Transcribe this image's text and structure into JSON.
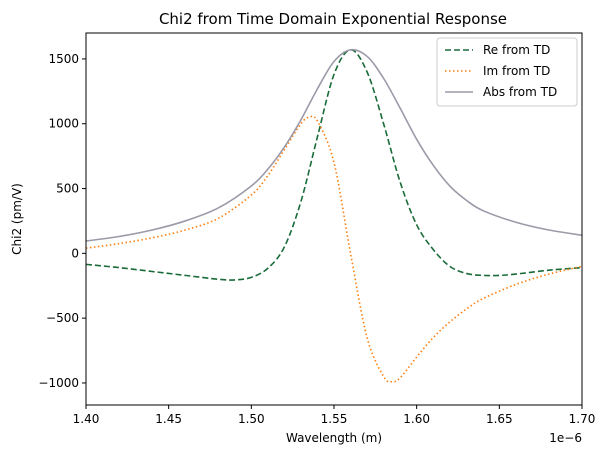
{
  "chart_data": {
    "type": "line",
    "title": "Chi2 from Time Domain Exponential Response",
    "xlabel": "Wavelength (m)",
    "ylabel": "Chi2 (pm/V)",
    "x_offset_label": "1e−6",
    "xlim": [
      1.4,
      1.7
    ],
    "ylim": [
      -1170,
      1700
    ],
    "x_ticks": [
      1.4,
      1.45,
      1.5,
      1.55,
      1.6,
      1.65,
      1.7
    ],
    "x_tick_labels": [
      "1.40",
      "1.45",
      "1.50",
      "1.55",
      "1.60",
      "1.65",
      "1.70"
    ],
    "y_ticks": [
      -1000,
      -500,
      0,
      500,
      1000,
      1500
    ],
    "y_tick_labels": [
      "−1000",
      "−500",
      "0",
      "500",
      "1000",
      "1500"
    ],
    "grid": false,
    "legend_position": "top-right",
    "series": [
      {
        "name": "Re from TD",
        "color": "#1a6b3a",
        "style": "dashed",
        "x": [
          1.4,
          1.42,
          1.44,
          1.46,
          1.48,
          1.49,
          1.5,
          1.51,
          1.52,
          1.53,
          1.54,
          1.55,
          1.56,
          1.57,
          1.58,
          1.59,
          1.6,
          1.61,
          1.62,
          1.63,
          1.64,
          1.65,
          1.66,
          1.68,
          1.7
        ],
        "y": [
          -85,
          -110,
          -140,
          -170,
          -200,
          -205,
          -185,
          -115,
          50,
          400,
          900,
          1380,
          1570,
          1400,
          1000,
          550,
          220,
          30,
          -100,
          -155,
          -170,
          -170,
          -160,
          -130,
          -110
        ]
      },
      {
        "name": "Im from TD",
        "color": "#ff7f0e",
        "style": "dotted",
        "x": [
          1.4,
          1.42,
          1.44,
          1.46,
          1.48,
          1.5,
          1.51,
          1.52,
          1.53,
          1.535,
          1.54,
          1.55,
          1.56,
          1.57,
          1.58,
          1.585,
          1.59,
          1.6,
          1.61,
          1.62,
          1.63,
          1.64,
          1.66,
          1.68,
          1.7
        ],
        "y": [
          40,
          75,
          120,
          180,
          270,
          450,
          600,
          800,
          1000,
          1050,
          1020,
          700,
          0,
          -650,
          -950,
          -990,
          -960,
          -800,
          -650,
          -530,
          -430,
          -350,
          -240,
          -160,
          -100
        ]
      },
      {
        "name": "Abs from TD",
        "color": "#9b9aa8",
        "style": "solid",
        "x": [
          1.4,
          1.42,
          1.44,
          1.46,
          1.48,
          1.5,
          1.51,
          1.52,
          1.53,
          1.54,
          1.55,
          1.56,
          1.57,
          1.58,
          1.59,
          1.6,
          1.61,
          1.62,
          1.63,
          1.64,
          1.66,
          1.68,
          1.7
        ],
        "y": [
          95,
          130,
          180,
          250,
          350,
          520,
          650,
          820,
          1030,
          1270,
          1480,
          1570,
          1520,
          1350,
          1120,
          880,
          680,
          520,
          410,
          330,
          240,
          180,
          140
        ]
      }
    ]
  }
}
